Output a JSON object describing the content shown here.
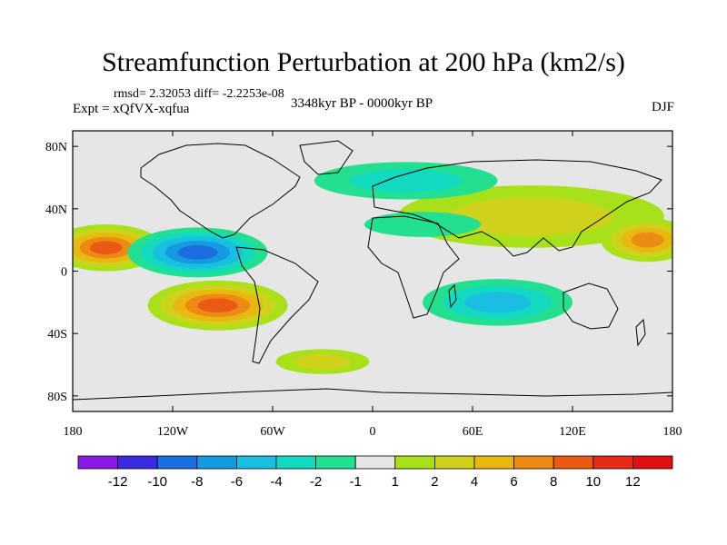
{
  "chart_data": {
    "type": "heatmap",
    "title": "Streamfunction Perturbation at 200 hPa (km2/s)",
    "subtitle_stats": "rmsd= 2.32053  diff= -2.2253e-08",
    "subtitle_period": "3348kyr BP - 0000kyr BP",
    "left_label": "Expt = xQfVX-xqfua",
    "right_label": "DJF",
    "x_ticks": [
      "180",
      "120W",
      "60W",
      "0",
      "60E",
      "120E",
      "180"
    ],
    "x_tick_values": [
      -180,
      -120,
      -60,
      0,
      60,
      120,
      180
    ],
    "y_ticks": [
      "80N",
      "40N",
      "0",
      "40S",
      "80S"
    ],
    "y_tick_values": [
      80,
      40,
      0,
      -40,
      -80
    ],
    "xlim": [
      -180,
      180
    ],
    "ylim": [
      -90,
      90
    ],
    "colorbar": {
      "labels": [
        "-12",
        "-10",
        "-8",
        "-6",
        "-4",
        "-2",
        "-1",
        "1",
        "2",
        "4",
        "6",
        "8",
        "10",
        "12"
      ],
      "colors": [
        "#8a1ae6",
        "#3a2ae0",
        "#1a6ee0",
        "#149ae0",
        "#18bfe0",
        "#13d9c0",
        "#22e090",
        "#e6e6e6",
        "#a8e01a",
        "#cfd21a",
        "#e8b810",
        "#ec8a14",
        "#ea5a14",
        "#e62a14",
        "#e01010"
      ]
    },
    "anomalies": [
      {
        "lon": -160,
        "lat": 15,
        "rlon": 34,
        "rlat": 15,
        "level": 5
      },
      {
        "lon": -93,
        "lat": -22,
        "rlon": 42,
        "rlat": 16,
        "level": 5
      },
      {
        "lon": -105,
        "lat": 12,
        "rlon": 42,
        "rlat": 16,
        "level": -5
      },
      {
        "lon": 95,
        "lat": 35,
        "rlon": 80,
        "rlat": 20,
        "level": 2
      },
      {
        "lon": 165,
        "lat": 20,
        "rlon": 28,
        "rlat": 14,
        "level": 4
      },
      {
        "lon": 75,
        "lat": -20,
        "rlon": 45,
        "rlat": 15,
        "level": -3
      },
      {
        "lon": 20,
        "lat": 58,
        "rlon": 55,
        "rlat": 12,
        "level": -2
      },
      {
        "lon": 30,
        "lat": 30,
        "rlon": 35,
        "rlat": 8,
        "level": -1
      },
      {
        "lon": -30,
        "lat": -58,
        "rlon": 28,
        "rlat": 8,
        "level": 2
      }
    ]
  }
}
